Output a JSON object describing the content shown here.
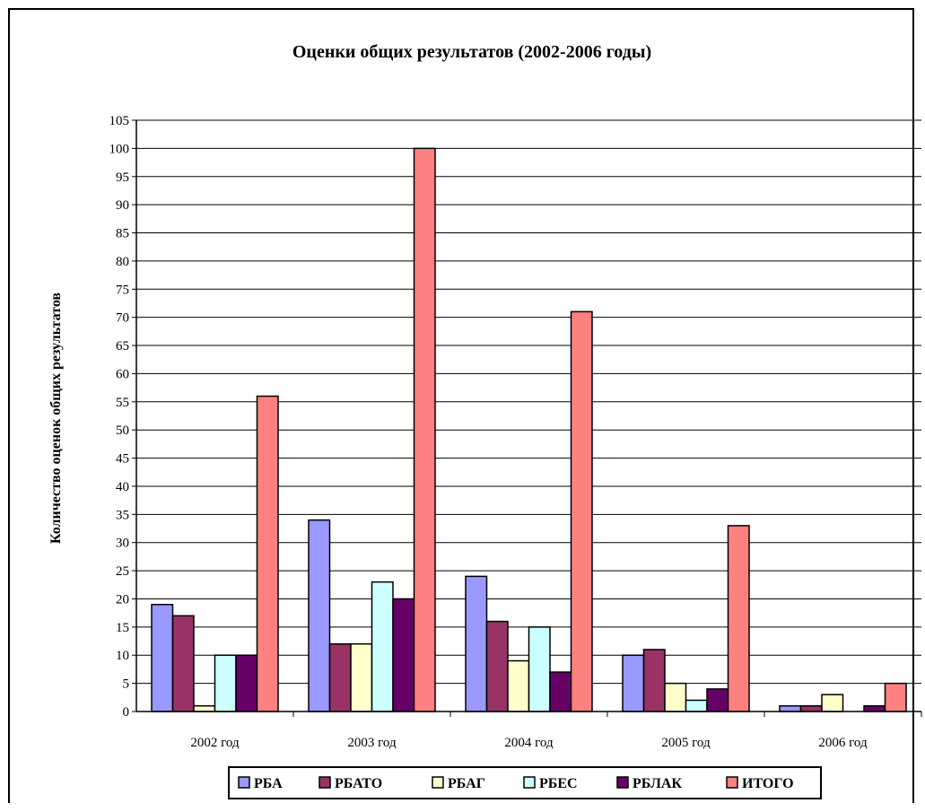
{
  "chart_data": {
    "type": "bar",
    "title": "Оценки общих результатов (2002-2006 годы)",
    "xlabel": "",
    "ylabel": "Количество оценок общих  результатов",
    "categories": [
      "2002 год",
      "2003 год",
      "2004 год",
      "2005 год",
      "2006 год"
    ],
    "ylim": [
      0,
      105
    ],
    "ytick_step": 5,
    "grid": true,
    "legend_position": "bottom",
    "series": [
      {
        "name": "РБА",
        "color": "#9999FF",
        "values": [
          19,
          34,
          24,
          10,
          1
        ]
      },
      {
        "name": "РБАТО",
        "color": "#993366",
        "values": [
          17,
          12,
          16,
          11,
          1
        ]
      },
      {
        "name": "РБАГ",
        "color": "#FFFFCC",
        "values": [
          1,
          12,
          9,
          5,
          3
        ]
      },
      {
        "name": "РБЕС",
        "color": "#CCFFFF",
        "values": [
          10,
          23,
          15,
          2,
          0
        ]
      },
      {
        "name": "РБЛАК",
        "color": "#660066",
        "values": [
          10,
          20,
          7,
          4,
          1
        ]
      },
      {
        "name": "ИТОГО",
        "color": "#FF8080",
        "values": [
          56,
          100,
          71,
          33,
          5
        ]
      }
    ]
  }
}
